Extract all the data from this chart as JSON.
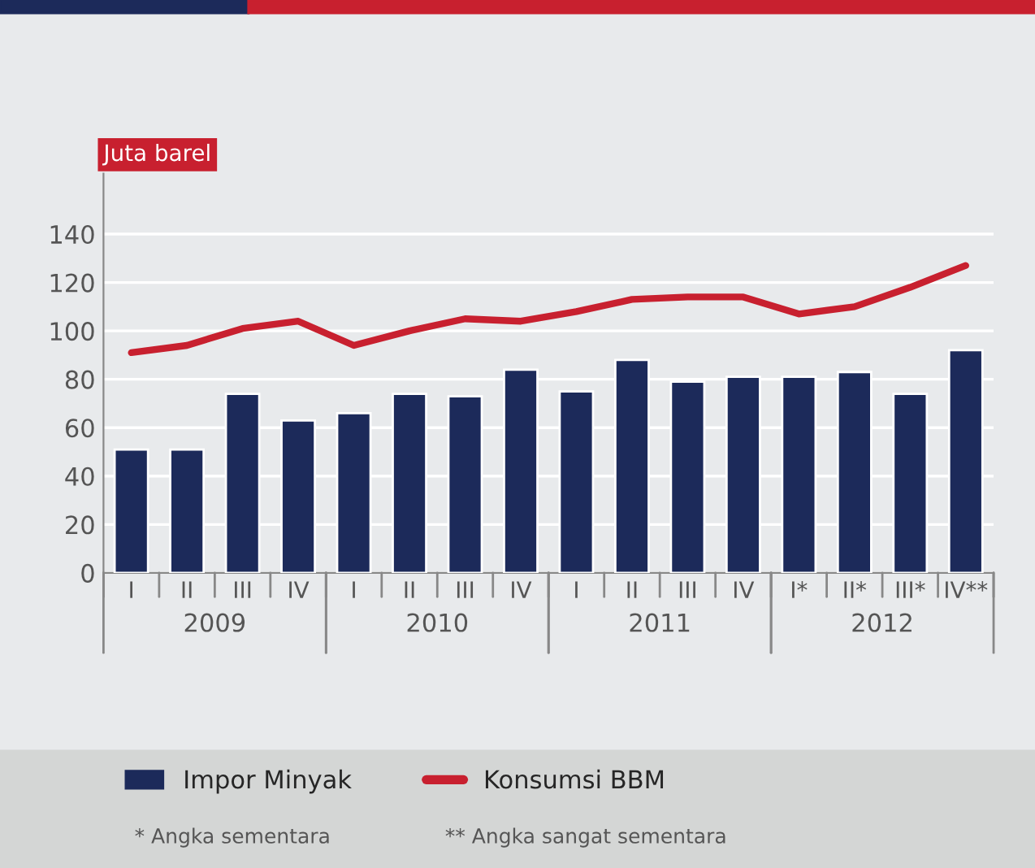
{
  "chart_data": {
    "type": "bar",
    "ylabel": "Juta barel",
    "categories": [
      "I",
      "II",
      "III",
      "IV",
      "I",
      "II",
      "III",
      "IV",
      "I",
      "II",
      "III",
      "IV",
      "I*",
      "II*",
      "III*",
      "IV**"
    ],
    "series": [
      {
        "name": "Impor Minyak",
        "color": "#1c2a5a",
        "values": [
          51,
          51,
          74,
          63,
          66,
          74,
          73,
          84,
          75,
          88,
          79,
          81,
          81,
          83,
          74,
          92
        ]
      },
      {
        "name": "Konsumsi BBM",
        "type": "line",
        "color": "#c8202f",
        "values": [
          91,
          94,
          101,
          104,
          94,
          100,
          105,
          104,
          108,
          113,
          114,
          114,
          107,
          110,
          118,
          127
        ]
      }
    ],
    "ylim": [
      0,
      165
    ],
    "yticks": [
      0,
      20,
      40,
      60,
      80,
      100,
      120,
      140
    ],
    "grid": "y",
    "legend": "bottom",
    "annotations": [
      "2009",
      "2010",
      "2011",
      "2012",
      "* Angka sementara",
      "** Angka sangat sementara"
    ]
  }
}
